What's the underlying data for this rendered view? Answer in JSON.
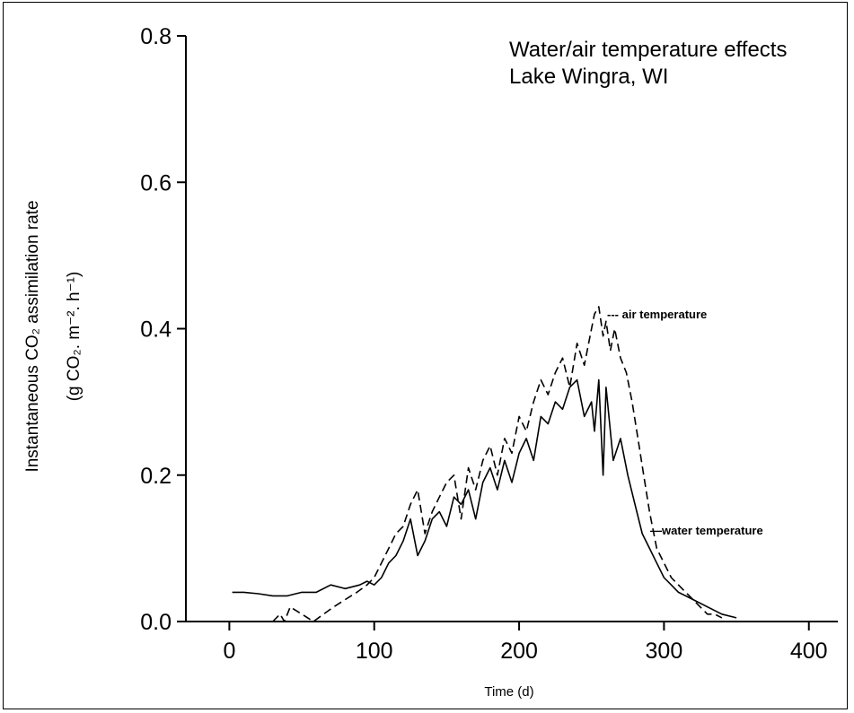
{
  "chart_data": {
    "type": "line",
    "title_lines": [
      "Water/air temperature effects",
      "Lake Wingra, WI"
    ],
    "xlabel": "Time (d)",
    "ylabel_line1": "Instantaneous CO₂ assimilation rate",
    "ylabel_line2": "(g CO₂. m⁻². h⁻¹)",
    "xlim": [
      -30,
      420
    ],
    "ylim": [
      0,
      0.8
    ],
    "xticks": [
      0,
      100,
      200,
      300,
      400
    ],
    "xtick_labels": [
      "0",
      "100",
      "200",
      "300",
      "400"
    ],
    "yticks": [
      0.0,
      0.2,
      0.4,
      0.6,
      0.8
    ],
    "ytick_labels": [
      "0.0",
      "0.2",
      "0.4",
      "0.6",
      "0.8"
    ],
    "grid": false,
    "series": [
      {
        "name": "air temperature",
        "style": "dashed",
        "color": "#000000",
        "x": [
          30,
          35,
          38,
          42,
          50,
          58,
          65,
          72,
          80,
          88,
          95,
          100,
          105,
          110,
          115,
          120,
          125,
          130,
          135,
          140,
          145,
          150,
          155,
          160,
          165,
          170,
          175,
          180,
          185,
          190,
          195,
          200,
          205,
          210,
          215,
          220,
          225,
          230,
          235,
          240,
          245,
          250,
          252,
          255,
          258,
          260,
          263,
          266,
          270,
          274,
          278,
          282,
          286,
          290,
          295,
          300,
          305,
          310,
          315,
          320,
          325,
          330,
          335,
          340
        ],
        "values": [
          0.0,
          0.01,
          0.0,
          0.02,
          0.01,
          0.0,
          0.01,
          0.02,
          0.03,
          0.04,
          0.05,
          0.06,
          0.08,
          0.1,
          0.12,
          0.13,
          0.16,
          0.18,
          0.12,
          0.15,
          0.17,
          0.19,
          0.2,
          0.14,
          0.21,
          0.18,
          0.22,
          0.24,
          0.2,
          0.25,
          0.23,
          0.28,
          0.26,
          0.3,
          0.33,
          0.31,
          0.34,
          0.36,
          0.32,
          0.38,
          0.35,
          0.4,
          0.42,
          0.43,
          0.39,
          0.41,
          0.37,
          0.4,
          0.36,
          0.34,
          0.3,
          0.25,
          0.2,
          0.15,
          0.1,
          0.08,
          0.06,
          0.05,
          0.04,
          0.03,
          0.02,
          0.01,
          0.01,
          0.005
        ]
      },
      {
        "name": "water temperature",
        "style": "solid",
        "color": "#000000",
        "x": [
          2,
          10,
          20,
          30,
          40,
          50,
          60,
          70,
          80,
          90,
          95,
          100,
          105,
          110,
          115,
          120,
          125,
          130,
          135,
          140,
          145,
          150,
          155,
          160,
          165,
          170,
          175,
          180,
          185,
          190,
          195,
          200,
          205,
          210,
          215,
          220,
          225,
          230,
          235,
          240,
          245,
          250,
          252,
          255,
          258,
          260,
          265,
          270,
          275,
          280,
          285,
          290,
          295,
          300,
          305,
          310,
          315,
          320,
          330,
          340,
          350
        ],
        "values": [
          0.04,
          0.04,
          0.038,
          0.035,
          0.035,
          0.04,
          0.04,
          0.05,
          0.045,
          0.05,
          0.055,
          0.05,
          0.06,
          0.08,
          0.09,
          0.11,
          0.14,
          0.09,
          0.11,
          0.14,
          0.15,
          0.13,
          0.17,
          0.16,
          0.18,
          0.14,
          0.19,
          0.21,
          0.18,
          0.22,
          0.19,
          0.23,
          0.25,
          0.22,
          0.28,
          0.27,
          0.3,
          0.29,
          0.32,
          0.33,
          0.28,
          0.3,
          0.26,
          0.33,
          0.2,
          0.32,
          0.22,
          0.25,
          0.2,
          0.16,
          0.12,
          0.1,
          0.08,
          0.06,
          0.05,
          0.04,
          0.035,
          0.03,
          0.02,
          0.01,
          0.005
        ]
      }
    ],
    "annotations": [
      {
        "text": "--- air temperature",
        "series": "air temperature"
      },
      {
        "text": "—water temperature",
        "series": "water temperature"
      }
    ]
  }
}
